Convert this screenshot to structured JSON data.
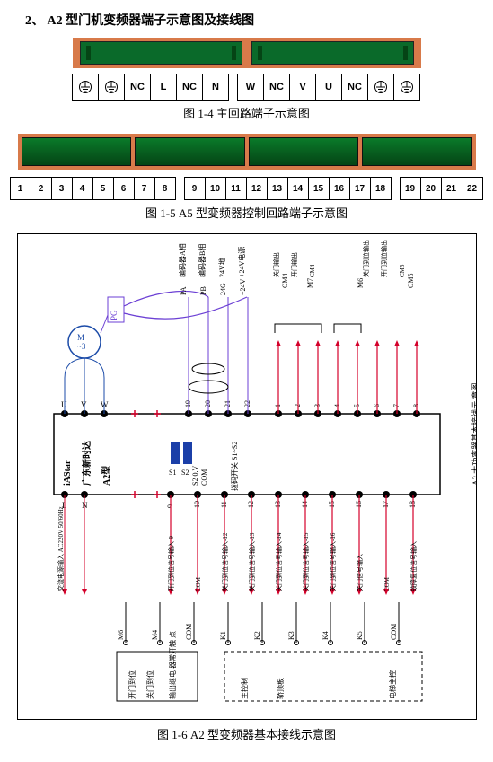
{
  "title": "2、  A2 型门机变频器端子示意图及接线图",
  "fig1": {
    "caption": "图 1-4  主回路端子示意图",
    "terminals_left": [
      "⏚",
      "⏚",
      "NC",
      "L",
      "NC",
      "N"
    ],
    "terminals_right": [
      "W",
      "NC",
      "V",
      "U",
      "NC",
      "⏚",
      "⏚"
    ]
  },
  "fig2": {
    "caption": "图 1-5  A5 型变频器控制回路端子示意图",
    "groups": [
      [
        "1",
        "2",
        "3",
        "4",
        "5",
        "6",
        "7",
        "8"
      ],
      [
        "9",
        "10",
        "11",
        "12",
        "13",
        "14",
        "15",
        "16",
        "17",
        "18"
      ],
      [
        "19",
        "20",
        "21",
        "22"
      ]
    ]
  },
  "fig3": {
    "caption": "图 1-6  A2 型变频器基本接线示意图",
    "side_label": "A2 大功率器基本接线示 意图",
    "plc_text1": "iAStar",
    "plc_text2": "广东新时达",
    "plc_text3": "A2型",
    "plc_dip1": "S1",
    "plc_dip2": "S2",
    "plc_note": "拨码开关 S1~S2",
    "uvw": [
      "U",
      "V",
      "W"
    ],
    "ln": [
      "L",
      "N"
    ],
    "pg": "PG",
    "motor": "M ~3",
    "top_nums": [
      "19",
      "20",
      "21",
      "22",
      "1",
      "2",
      "3",
      "4",
      "5",
      "6",
      "7",
      "8"
    ],
    "bot_nums": [
      "9",
      "10",
      "11",
      "12",
      "13",
      "14",
      "15",
      "16",
      "17",
      "18"
    ],
    "top_labels_pg": [
      "PA",
      "PB",
      "24G",
      "+24V"
    ],
    "top_group_a": [
      "编码器A相",
      "编码器B相",
      "24V地",
      "+24V电源"
    ],
    "top_group_b": [
      "关门输出",
      "开门输出",
      "CM4"
    ],
    "top_group_c": [
      "关门到位输出",
      "开门到位输出",
      "CM5"
    ],
    "top_outputs": [
      "CM4",
      "M7",
      "M6",
      "CM5"
    ],
    "bot_labels": [
      "交流电源输入 AC220V 50/60Hz",
      "COM",
      "开门到位信号输入-9",
      "COM",
      "关门到位信号输入-12",
      "关门到位信号输入-13",
      "关门到位信号输入-14",
      "关门到位信号输入-15",
      "关门到位信号输入-16",
      "关门信号输入",
      "COM",
      "故障复位信号输入"
    ],
    "relay_labels": [
      "M6",
      "M4",
      "COM",
      "K1",
      "K2",
      "K3",
      "K4",
      "K5",
      "COM"
    ],
    "relay_group_left": "开门到位 关门到位",
    "relay_group_right": "输出继电 器常开触 点",
    "relay_names": [
      "主控制",
      "轿顶板",
      "电梯主 控制器 或 轿顶板"
    ],
    "colors": {
      "pg_wire": "#6b3fd4",
      "red_wire": "#d4002a",
      "blue_wire": "#1b4ba8",
      "plc_body": "#ffffff",
      "dip": "#1b3fa8"
    }
  }
}
